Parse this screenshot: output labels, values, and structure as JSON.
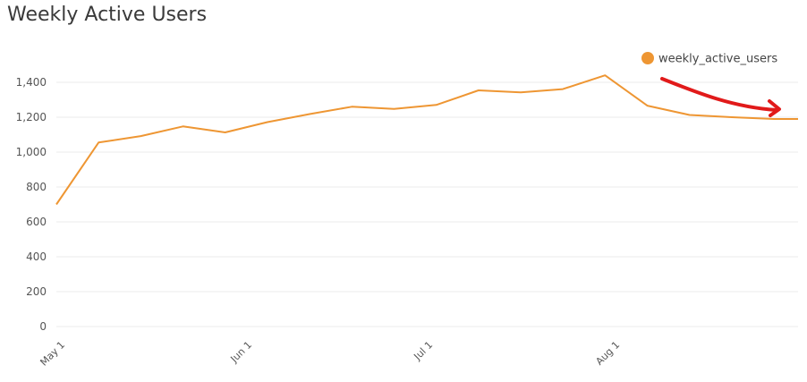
{
  "colors": {
    "series": "#ee9633",
    "annotation": "#e11a1a",
    "grid": "#ebebeb"
  },
  "chart_data": {
    "type": "line",
    "title": "Weekly Active Users",
    "xlabel": "",
    "ylabel": "",
    "ylim": [
      0,
      1400
    ],
    "yticks": [
      0,
      200,
      400,
      600,
      800,
      1000,
      1200,
      1400
    ],
    "ytick_labels": [
      "0",
      "200",
      "400",
      "600",
      "800",
      "1,000",
      "1,200",
      "1,400"
    ],
    "xticks": [
      "2024-05-01",
      "2024-06-01",
      "2024-07-01",
      "2024-08-01"
    ],
    "xtick_labels": [
      "May 1",
      "Jun 1",
      "Jul 1",
      "Aug 1"
    ],
    "grid": true,
    "legend": "top-right",
    "series": [
      {
        "name": "weekly_active_users",
        "color": "#ee9633",
        "x": [
          "2024-05-01",
          "2024-05-08",
          "2024-05-15",
          "2024-05-22",
          "2024-05-29",
          "2024-06-05",
          "2024-06-12",
          "2024-06-19",
          "2024-06-26",
          "2024-07-03",
          "2024-07-10",
          "2024-07-17",
          "2024-07-24",
          "2024-07-31",
          "2024-08-07",
          "2024-08-14",
          "2024-08-21",
          "2024-08-28",
          "2024-09-01"
        ],
        "y": [
          700,
          1055,
          1092,
          1147,
          1113,
          1172,
          1218,
          1260,
          1247,
          1270,
          1354,
          1342,
          1361,
          1440,
          1266,
          1213,
          1200,
          1190,
          1190
        ]
      }
    ],
    "annotations": [
      {
        "type": "arrow",
        "description": "hand-drawn red arrow pointing down-right"
      }
    ]
  }
}
